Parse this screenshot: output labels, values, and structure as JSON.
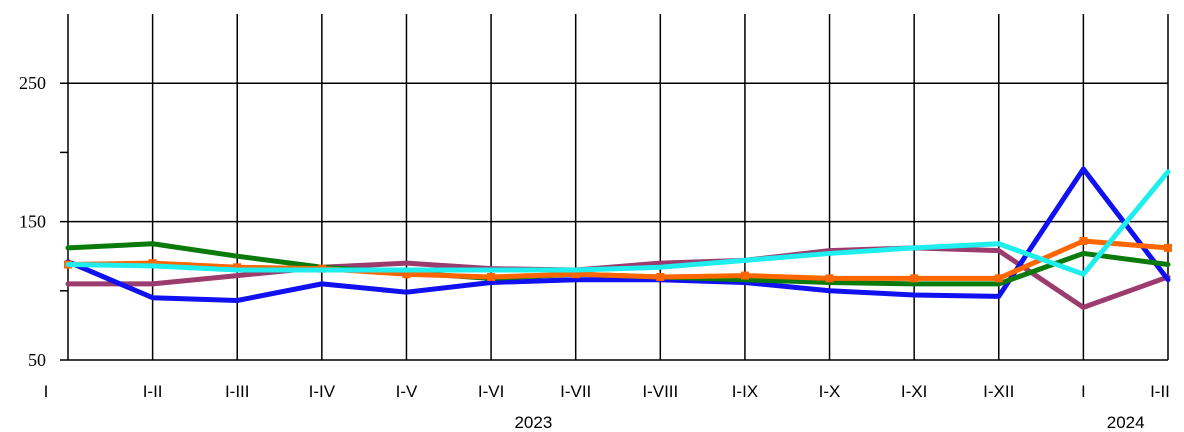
{
  "chart_data": {
    "type": "line",
    "title": "",
    "xlabel": "",
    "ylabel": "",
    "ylim": [
      50,
      300
    ],
    "yticks": [
      50,
      150,
      250
    ],
    "grid": "on",
    "categories": [
      "I",
      "I-II",
      "I-III",
      "I-IV",
      "I-V",
      "I-VI",
      "I-VII",
      "I-VIII",
      "I-IX",
      "I-X",
      "I-XI",
      "I-XII",
      "I",
      "I-II"
    ],
    "year_labels": [
      {
        "text": "2023",
        "under_category_index": 5.5
      },
      {
        "text": "2024",
        "under_category_index": 12.5
      }
    ],
    "series": [
      {
        "color": "#9B3B6E",
        "values": [
          105,
          105,
          111,
          117,
          120,
          116,
          115,
          120,
          122,
          129,
          131,
          129,
          88,
          110
        ]
      },
      {
        "color": "#1010F0",
        "values": [
          121,
          95,
          93,
          105,
          99,
          106,
          108,
          108,
          106,
          100,
          97,
          96,
          188,
          108
        ]
      },
      {
        "color": "#0A7A0A",
        "values": [
          131,
          134,
          125,
          117,
          113,
          109,
          112,
          110,
          108,
          106,
          105,
          105,
          127,
          119
        ]
      },
      {
        "color": "#FF6600",
        "marker": "square",
        "values": [
          119,
          120,
          117,
          116,
          112,
          110,
          112,
          110,
          111,
          109,
          109,
          109,
          136,
          131
        ]
      },
      {
        "color": "#1EEEEE",
        "values": [
          119,
          118,
          115,
          115,
          115,
          115,
          115,
          117,
          122,
          127,
          131,
          134,
          112,
          186
        ]
      }
    ]
  }
}
